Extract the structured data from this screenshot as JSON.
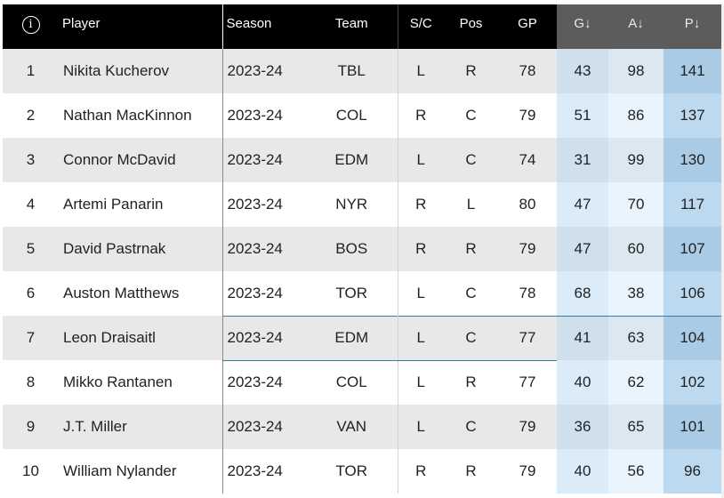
{
  "header": {
    "info_icon": "info-icon",
    "player": "Player",
    "season": "Season",
    "team": "Team",
    "sc": "S/C",
    "pos": "Pos",
    "gp": "GP",
    "g": "G↓",
    "a": "A↓",
    "p": "P↓"
  },
  "rows": [
    {
      "rank": "1",
      "player": "Nikita Kucherov",
      "season": "2023-24",
      "team": "TBL",
      "sc": "L",
      "pos": "R",
      "gp": "78",
      "g": "43",
      "a": "98",
      "p": "141"
    },
    {
      "rank": "2",
      "player": "Nathan MacKinnon",
      "season": "2023-24",
      "team": "COL",
      "sc": "R",
      "pos": "C",
      "gp": "79",
      "g": "51",
      "a": "86",
      "p": "137"
    },
    {
      "rank": "3",
      "player": "Connor McDavid",
      "season": "2023-24",
      "team": "EDM",
      "sc": "L",
      "pos": "C",
      "gp": "74",
      "g": "31",
      "a": "99",
      "p": "130"
    },
    {
      "rank": "4",
      "player": "Artemi Panarin",
      "season": "2023-24",
      "team": "NYR",
      "sc": "R",
      "pos": "L",
      "gp": "80",
      "g": "47",
      "a": "70",
      "p": "117"
    },
    {
      "rank": "5",
      "player": "David Pastrnak",
      "season": "2023-24",
      "team": "BOS",
      "sc": "R",
      "pos": "R",
      "gp": "79",
      "g": "47",
      "a": "60",
      "p": "107"
    },
    {
      "rank": "6",
      "player": "Auston Matthews",
      "season": "2023-24",
      "team": "TOR",
      "sc": "L",
      "pos": "C",
      "gp": "78",
      "g": "68",
      "a": "38",
      "p": "106"
    },
    {
      "rank": "7",
      "player": "Leon Draisaitl",
      "season": "2023-24",
      "team": "EDM",
      "sc": "L",
      "pos": "C",
      "gp": "77",
      "g": "41",
      "a": "63",
      "p": "104"
    },
    {
      "rank": "8",
      "player": "Mikko Rantanen",
      "season": "2023-24",
      "team": "COL",
      "sc": "L",
      "pos": "R",
      "gp": "77",
      "g": "40",
      "a": "62",
      "p": "102"
    },
    {
      "rank": "9",
      "player": "J.T. Miller",
      "season": "2023-24",
      "team": "VAN",
      "sc": "L",
      "pos": "C",
      "gp": "79",
      "g": "36",
      "a": "65",
      "p": "101"
    },
    {
      "rank": "10",
      "player": "William Nylander",
      "season": "2023-24",
      "team": "TOR",
      "sc": "R",
      "pos": "R",
      "gp": "79",
      "g": "40",
      "a": "56",
      "p": "96"
    }
  ],
  "colors": {
    "header_bg": "#000000",
    "sorted_header_bg": "#5c5c5c",
    "row_stripe": "#e8e8e8",
    "points_col": "#a9cbe5",
    "highlight_border": "#2f7fa6"
  }
}
